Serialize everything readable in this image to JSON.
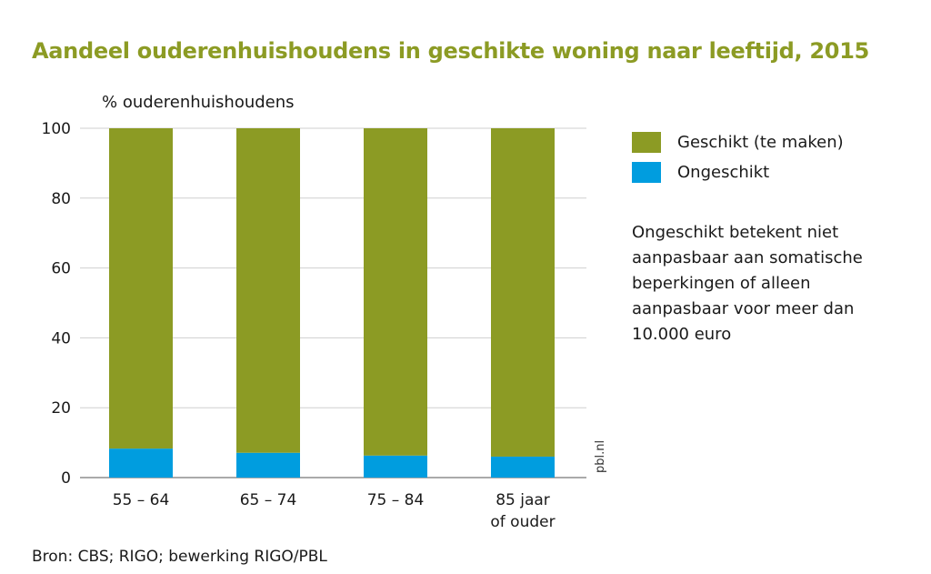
{
  "title": "Aandeel ouderenhuishoudens in geschikte woning naar leeftijd, 2015",
  "note": "Ongeschikt betekent niet aanpasbaar aan somatische beperkingen of alleen aanpasbaar voor meer dan 10.000 euro",
  "source": "Bron: CBS; RIGO; bewerking RIGO/PBL",
  "watermark": "pbl.nl",
  "colors": {
    "geschikt": "#8c9b24",
    "ongeschikt": "#009ddf",
    "title": "#8c9b24",
    "grid": "#cfcfcf"
  },
  "chart_data": {
    "type": "bar",
    "stacked": true,
    "title": "Aandeel ouderenhuishoudens in geschikte woning naar leeftijd, 2015",
    "ylabel": "% ouderenhuishoudens",
    "xlabel": "",
    "categories": [
      [
        "55 – 64"
      ],
      [
        "65 – 74"
      ],
      [
        "75 – 84"
      ],
      [
        "85 jaar",
        "of ouder"
      ]
    ],
    "series": [
      {
        "name": "Ongeschikt",
        "values": [
          8.3,
          7.1,
          6.3,
          6.0
        ]
      },
      {
        "name": "Geschikt (te maken)",
        "values": [
          91.7,
          92.9,
          93.7,
          94.0
        ]
      }
    ],
    "ylim": [
      0,
      100
    ],
    "yticks": [
      0,
      20,
      40,
      60,
      80,
      100
    ],
    "grid": true,
    "legend": "right"
  }
}
